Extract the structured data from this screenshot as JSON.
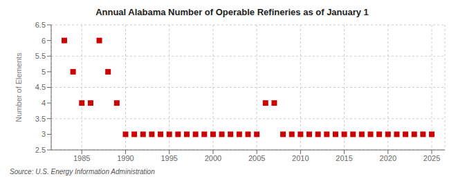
{
  "chart_data": {
    "type": "scatter",
    "title": "Annual Alabama Number of Operable Refineries as of January 1",
    "ylabel": "Number of Elements",
    "x": [
      1983,
      1984,
      1985,
      1986,
      1987,
      1988,
      1989,
      1990,
      1991,
      1992,
      1993,
      1994,
      1995,
      1996,
      1997,
      1998,
      1999,
      2000,
      2001,
      2002,
      2003,
      2004,
      2005,
      2006,
      2007,
      2008,
      2009,
      2010,
      2011,
      2012,
      2013,
      2014,
      2015,
      2016,
      2017,
      2018,
      2019,
      2020,
      2021,
      2022,
      2023,
      2024,
      2025
    ],
    "values": [
      6,
      5,
      4,
      4,
      6,
      5,
      4,
      3,
      3,
      3,
      3,
      3,
      3,
      3,
      3,
      3,
      3,
      3,
      3,
      3,
      3,
      3,
      3,
      4,
      4,
      3,
      3,
      3,
      3,
      3,
      3,
      3,
      3,
      3,
      3,
      3,
      3,
      3,
      3,
      3,
      3,
      3,
      3
    ],
    "color": "#cc0000",
    "marker": "square",
    "xlim": [
      1981.5,
      2026.5
    ],
    "ylim": [
      2.5,
      6.5
    ],
    "xticks": [
      1985,
      1990,
      1995,
      2000,
      2005,
      2010,
      2015,
      2020,
      2025
    ],
    "yticks": [
      2.5,
      3,
      3.5,
      4,
      4.5,
      5,
      5.5,
      6,
      6.5
    ],
    "grid": true,
    "annotations": [
      "Source: U.S. Energy Information Administration"
    ]
  }
}
